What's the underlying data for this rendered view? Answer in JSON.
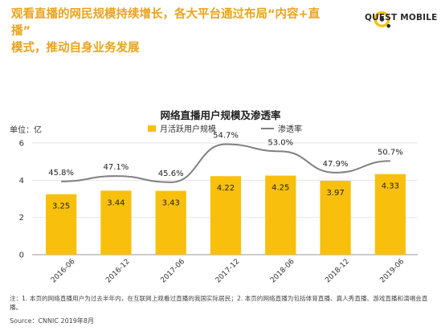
{
  "headline": {
    "line1": "观看直播的网民规模持续增长，各大平台通过布局“内容+直播”",
    "line2": "模式，推动自身业务发展"
  },
  "brand": {
    "name": "QUEST MOBILE",
    "accent": "#f8c00c"
  },
  "unit_label": "单位：亿",
  "note": "注：1. 本页的网络直播用户为过去半年内，在互联网上观看过直播的我国实际居民；2. 本页的网络直播为包括体育直播、真人秀直播、游戏直播和演唱会直播。",
  "source": "Source：CNNIC 2019年8月",
  "chart_data": {
    "type": "bar",
    "title": "网络直播用户规模及渗透率",
    "categories": [
      "2016-06",
      "2016-12",
      "2017-06",
      "2017-12",
      "2018-06",
      "2018-12",
      "2019-06"
    ],
    "ylim": [
      0,
      6
    ],
    "yticks": [
      0,
      2,
      4,
      6
    ],
    "legend_placement": "top",
    "series": [
      {
        "name": "月活跃用户规模",
        "type": "bar",
        "color": "#f8c00c",
        "values": [
          3.25,
          3.44,
          3.43,
          4.22,
          4.25,
          3.97,
          4.33
        ],
        "labels": [
          "3.25",
          "3.44",
          "3.43",
          "4.22",
          "4.25",
          "3.97",
          "4.33"
        ]
      },
      {
        "name": "渗透率",
        "type": "line",
        "color": "#808080",
        "values": [
          45.8,
          47.1,
          45.6,
          54.7,
          53.0,
          47.9,
          50.7
        ],
        "labels": [
          "45.8%",
          "47.1%",
          "45.6%",
          "54.7%",
          "53.0%",
          "47.9%",
          "50.7%"
        ]
      }
    ]
  }
}
